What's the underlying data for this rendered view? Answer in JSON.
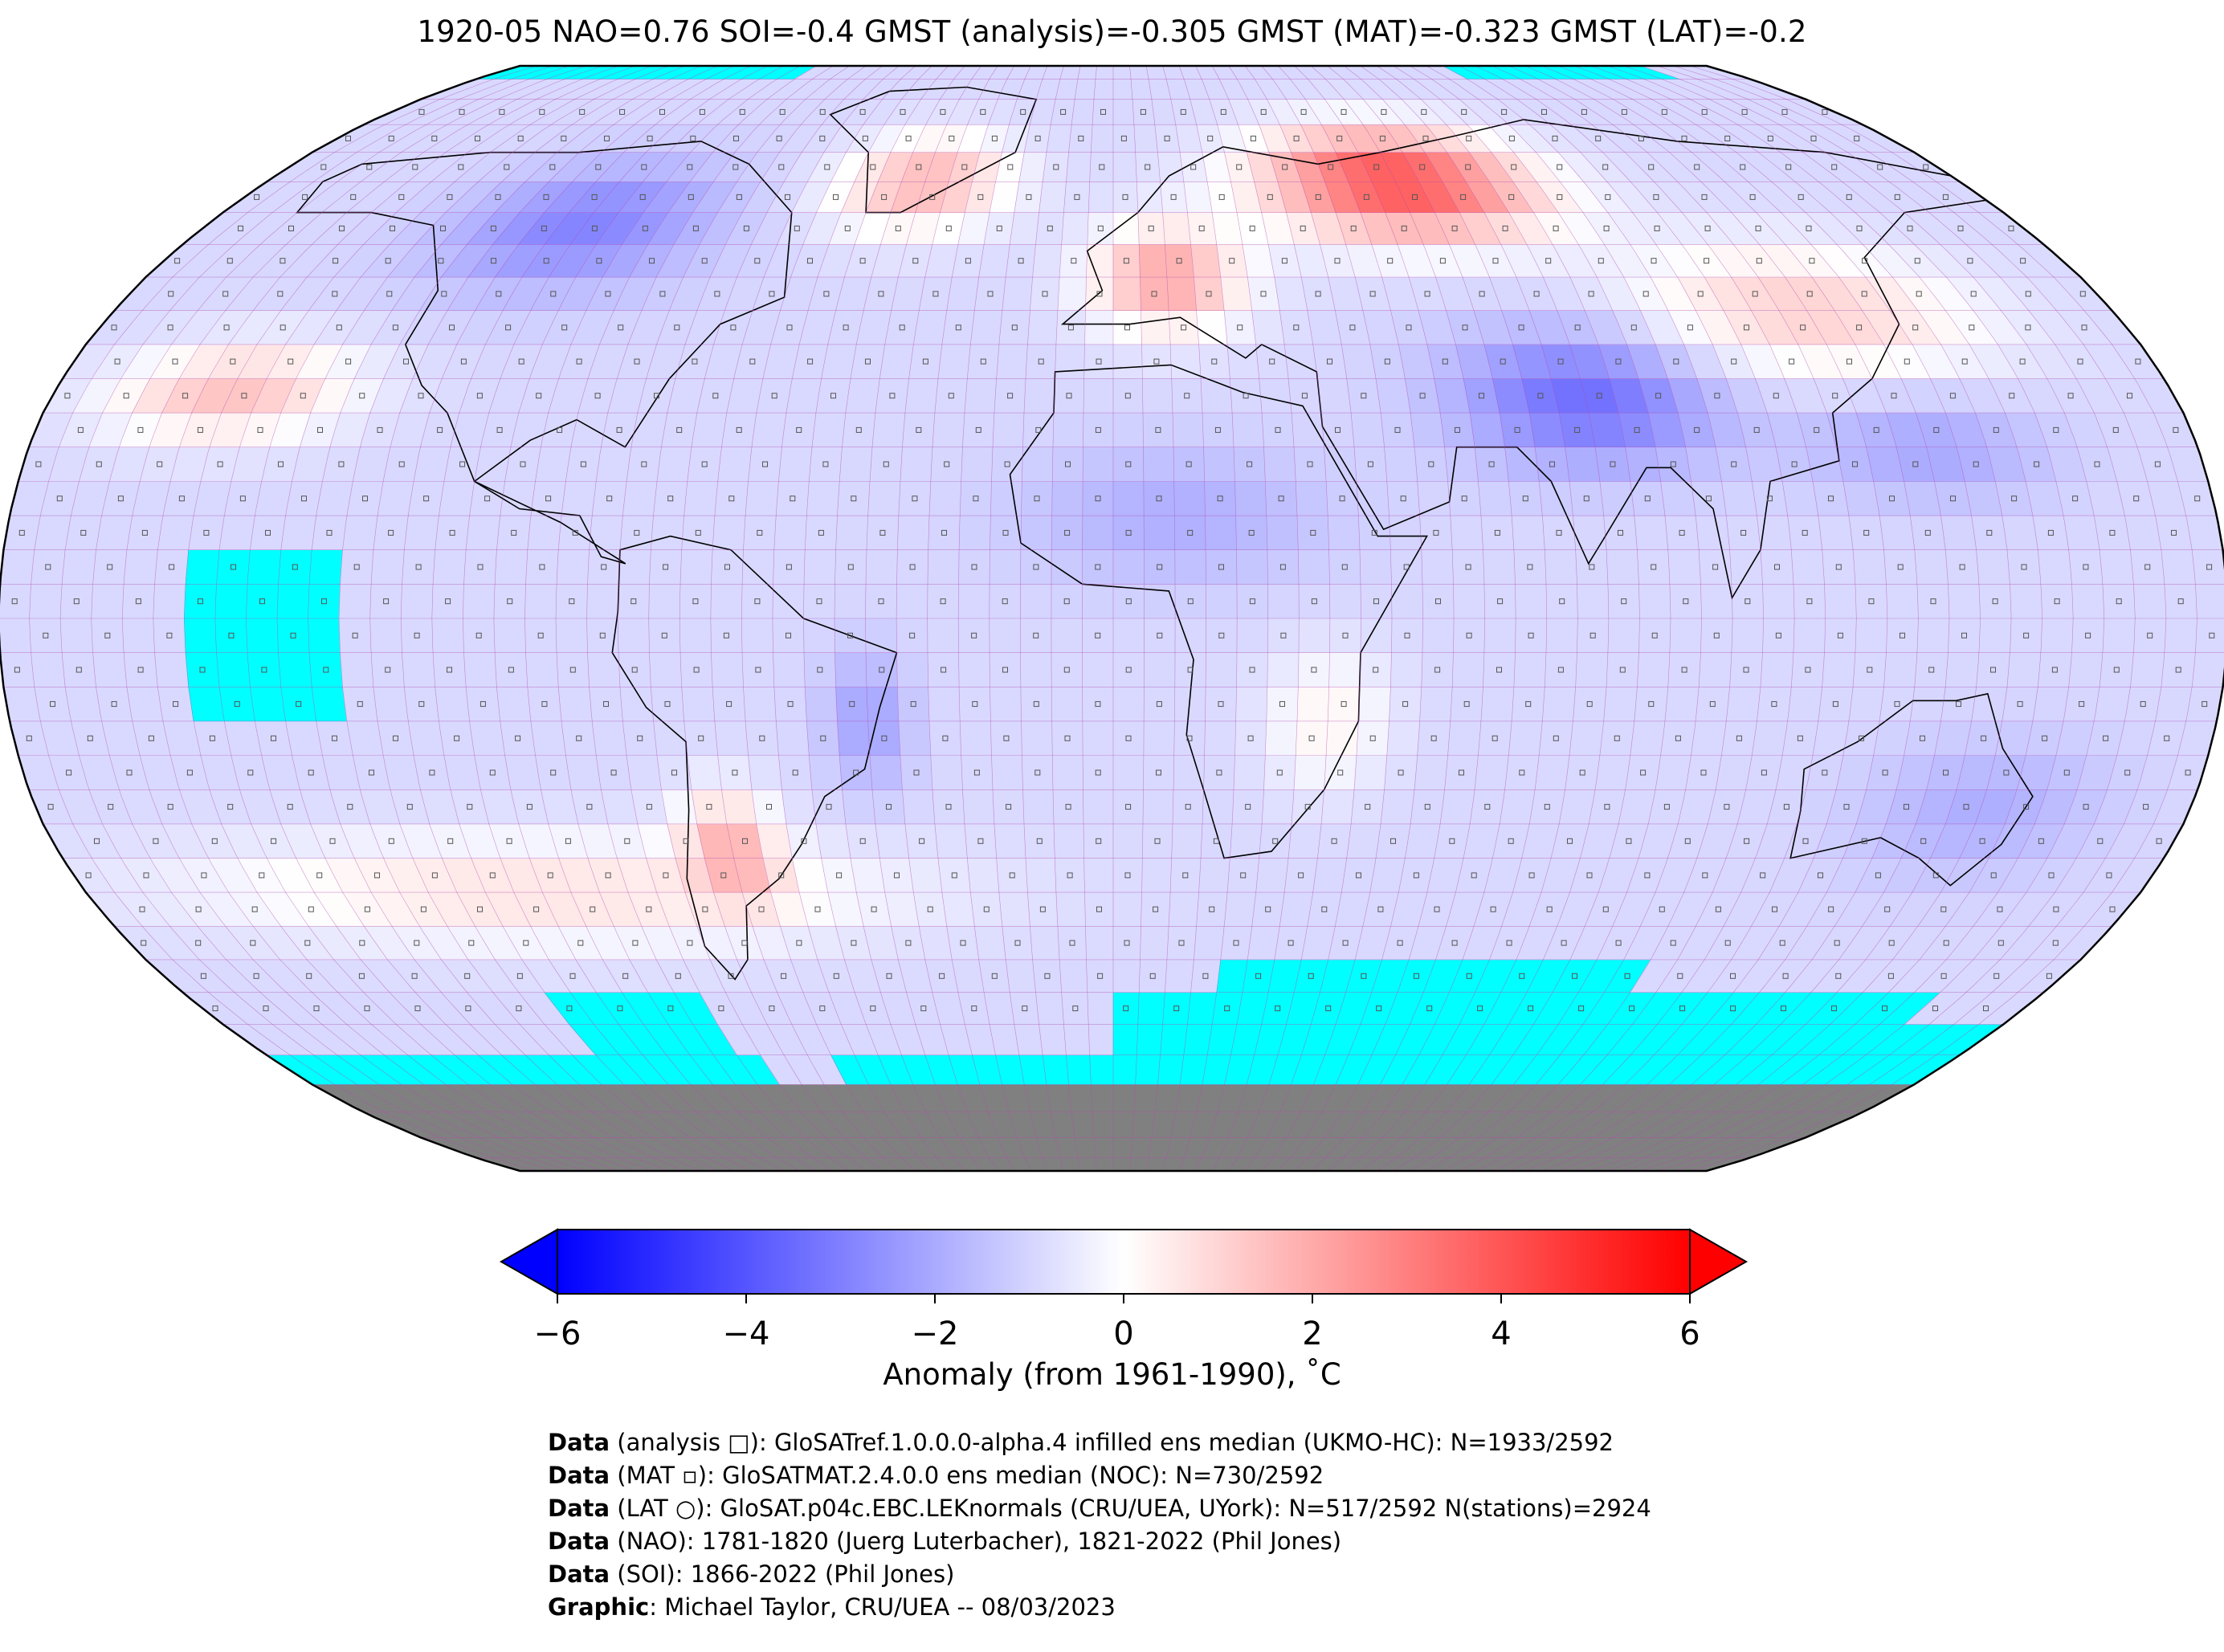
{
  "title": "1920-05 NAO=0.76 SOI=-0.4 GMST (analysis)=-0.305 GMST (MAT)=-0.323 GMST (LAT)=-0.2",
  "colorbar": {
    "ticks": [
      "−6",
      "−4",
      "−2",
      "0",
      "2",
      "4",
      "6"
    ],
    "tick_values": [
      -6,
      -4,
      -2,
      0,
      2,
      4,
      6
    ],
    "range": [
      -6,
      6
    ],
    "label": "Anomaly (from 1961-1990), ˚C",
    "colors": {
      "min": "#0000ff",
      "mid": "#ffffff",
      "max": "#ff0000"
    }
  },
  "map": {
    "projection": "robinson",
    "ocean_missing_color": "#00ffff",
    "antarctica_color": "#808080",
    "grid_color": "#b04db0"
  },
  "credits": [
    {
      "label": "Data",
      "text": " (analysis □): GloSATref.1.0.0.0-alpha.4 infilled ens median (UKMO-HC): N=1933/2592"
    },
    {
      "label": "Data",
      "text": " (MAT ▫): GloSATMAT.2.4.0.0 ens median (NOC): N=730/2592"
    },
    {
      "label": "Data",
      "text": " (LAT ○): GloSAT.p04c.EBC.LEKnormals (CRU/UEA, UYork): N=517/2592 N(stations)=2924"
    },
    {
      "label": "Data",
      "text": " (NAO): 1781-1820 (Juerg Luterbacher), 1821-2022 (Phil Jones)"
    },
    {
      "label": "Data",
      "text": " (SOI): 1866-2022 (Phil Jones)"
    },
    {
      "label": "Graphic",
      "text": ": Michael Taylor, CRU/UEA -- 08/03/2023"
    }
  ]
}
